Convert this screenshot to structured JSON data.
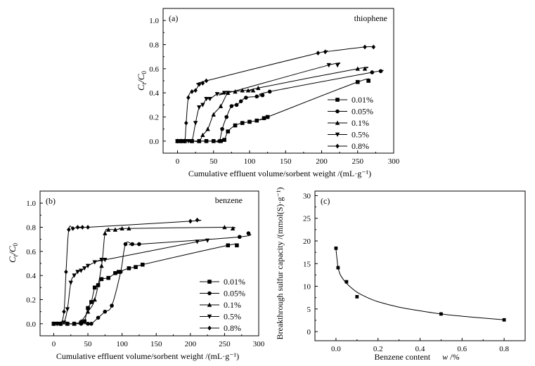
{
  "chart_data": [
    {
      "panel": "(a)",
      "annotation": "thiophene",
      "type": "line",
      "xlabel": "Cumulative effluent volume/sorbent weight /(mL·g⁻¹)",
      "ylabel_main": "C",
      "ylabel_sub1": "t",
      "ylabel_sep": "/C",
      "ylabel_sub2": "0",
      "xlim": [
        -20,
        300
      ],
      "ylim": [
        -0.1,
        1.1
      ],
      "xticks": [
        "0",
        "50",
        "100",
        "150",
        "200",
        "250",
        "300"
      ],
      "yticks": [
        "0.0",
        "0.2",
        "0.4",
        "0.6",
        "0.8",
        "1.0"
      ],
      "legend_position": "bottom-right",
      "series": [
        {
          "name": "0.01%",
          "marker": "square",
          "x": [
            0,
            5,
            10,
            20,
            30,
            40,
            50,
            60,
            65,
            70,
            80,
            90,
            100,
            110,
            120,
            125,
            250,
            265
          ],
          "y": [
            0,
            0,
            0,
            0,
            0,
            0,
            0,
            0,
            0.01,
            0.08,
            0.13,
            0.15,
            0.16,
            0.17,
            0.19,
            0.2,
            0.49,
            0.5
          ]
        },
        {
          "name": "0.05%",
          "marker": "circle",
          "x": [
            0,
            5,
            10,
            20,
            30,
            40,
            50,
            58,
            62,
            68,
            75,
            82,
            88,
            95,
            110,
            118,
            128,
            270,
            282
          ],
          "y": [
            0,
            0,
            0,
            0,
            0,
            0,
            0,
            0,
            0.1,
            0.2,
            0.29,
            0.3,
            0.33,
            0.36,
            0.37,
            0.38,
            0.41,
            0.57,
            0.58
          ]
        },
        {
          "name": "0.1%",
          "marker": "triangle-up",
          "x": [
            0,
            5,
            10,
            20,
            30,
            35,
            42,
            50,
            60,
            70,
            80,
            90,
            98,
            105,
            112,
            250,
            260
          ],
          "y": [
            0,
            0,
            0,
            0,
            0,
            0.05,
            0.1,
            0.22,
            0.29,
            0.4,
            0.41,
            0.42,
            0.42,
            0.42,
            0.44,
            0.6,
            0.6
          ]
        },
        {
          "name": "0.5%",
          "marker": "triangle-down",
          "x": [
            0,
            5,
            10,
            15,
            20,
            25,
            30,
            35,
            40,
            45,
            55,
            65,
            70,
            210,
            222
          ],
          "y": [
            0,
            0,
            0,
            0,
            0,
            0.15,
            0.28,
            0.3,
            0.35,
            0.35,
            0.39,
            0.4,
            0.4,
            0.63,
            0.63
          ]
        },
        {
          "name": "0.8%",
          "marker": "diamond",
          "x": [
            0,
            5,
            10,
            12,
            15,
            20,
            25,
            30,
            35,
            40,
            195,
            205,
            260,
            272
          ],
          "y": [
            0,
            0,
            0,
            0.15,
            0.36,
            0.41,
            0.42,
            0.47,
            0.48,
            0.5,
            0.73,
            0.74,
            0.78,
            0.78
          ]
        }
      ]
    },
    {
      "panel": "(b)",
      "annotation": "benzene",
      "type": "line",
      "xlabel": "Cumulative effluent volume/sorbent weight /(mL·g⁻¹)",
      "ylabel_main": "C",
      "ylabel_sub1": "t",
      "ylabel_sep": "/C",
      "ylabel_sub2": "0",
      "xlim": [
        -20,
        300
      ],
      "ylim": [
        -0.1,
        1.1
      ],
      "xticks": [
        "0",
        "50",
        "100",
        "150",
        "200",
        "250",
        "300"
      ],
      "yticks": [
        "0.0",
        "0.2",
        "0.4",
        "0.6",
        "0.8",
        "1.0"
      ],
      "legend_position": "bottom-right",
      "series": [
        {
          "name": "0.01%",
          "marker": "square",
          "x": [
            0,
            10,
            20,
            30,
            40,
            45,
            50,
            55,
            60,
            65,
            70,
            80,
            90,
            95,
            110,
            120,
            130,
            255,
            268
          ],
          "y": [
            0,
            0,
            0,
            0,
            0.01,
            0.02,
            0.13,
            0.18,
            0.3,
            0.32,
            0.37,
            0.38,
            0.42,
            0.43,
            0.46,
            0.47,
            0.49,
            0.65,
            0.65
          ]
        },
        {
          "name": "0.05%",
          "marker": "circle",
          "x": [
            0,
            10,
            20,
            30,
            40,
            50,
            55,
            65,
            75,
            85,
            98,
            105,
            115,
            125,
            272,
            285
          ],
          "y": [
            0,
            0,
            0,
            0,
            0,
            0,
            0,
            0.05,
            0.1,
            0.15,
            0.43,
            0.66,
            0.66,
            0.66,
            0.72,
            0.75
          ]
        },
        {
          "name": "0.1%",
          "marker": "triangle-up",
          "x": [
            0,
            10,
            20,
            30,
            40,
            50,
            60,
            70,
            75,
            80,
            90,
            100,
            110,
            250,
            262
          ],
          "y": [
            0,
            0,
            0,
            0,
            0.02,
            0.1,
            0.2,
            0.48,
            0.75,
            0.78,
            0.78,
            0.79,
            0.79,
            0.8,
            0.79
          ]
        },
        {
          "name": "0.5%",
          "marker": "triangle-down",
          "x": [
            0,
            5,
            10,
            15,
            20,
            25,
            30,
            35,
            40,
            45,
            50,
            60,
            70,
            75,
            210,
            225
          ],
          "y": [
            0,
            0,
            0,
            0.01,
            0.12,
            0.34,
            0.4,
            0.43,
            0.44,
            0.46,
            0.48,
            0.51,
            0.53,
            0.53,
            0.68,
            0.69
          ]
        },
        {
          "name": "0.8%",
          "marker": "diamond",
          "x": [
            0,
            5,
            10,
            15,
            18,
            22,
            28,
            35,
            42,
            50,
            200,
            210
          ],
          "y": [
            0,
            0,
            0,
            0.1,
            0.43,
            0.78,
            0.79,
            0.8,
            0.8,
            0.8,
            0.85,
            0.86
          ]
        }
      ]
    },
    {
      "panel": "(c)",
      "type": "scatter",
      "xlabel_text": "Benzene content",
      "xlabel_var": "w",
      "xlabel_unit": "/%",
      "ylabel": "Breakthrough sulfur capacity /(mmol(S)·g⁻¹)",
      "xlim": [
        -0.1,
        0.9
      ],
      "ylim": [
        -2,
        31
      ],
      "xticks": [
        "0.0",
        "0.2",
        "0.4",
        "0.6",
        "0.8"
      ],
      "yticks": [
        "0",
        "5",
        "10",
        "15",
        "20",
        "25",
        "30"
      ],
      "points": {
        "x": [
          0.0,
          0.01,
          0.05,
          0.1,
          0.5,
          0.8
        ],
        "y": [
          18.4,
          14.1,
          11.0,
          7.7,
          3.9,
          2.6
        ]
      },
      "fit": {
        "x": [
          0.0,
          0.005,
          0.01,
          0.02,
          0.04,
          0.06,
          0.1,
          0.15,
          0.2,
          0.3,
          0.4,
          0.5,
          0.6,
          0.7,
          0.8
        ],
        "y": [
          18.2,
          16.0,
          14.2,
          12.6,
          11.2,
          10.2,
          8.7,
          7.5,
          6.6,
          5.4,
          4.6,
          3.9,
          3.4,
          3.0,
          2.6
        ]
      }
    }
  ]
}
